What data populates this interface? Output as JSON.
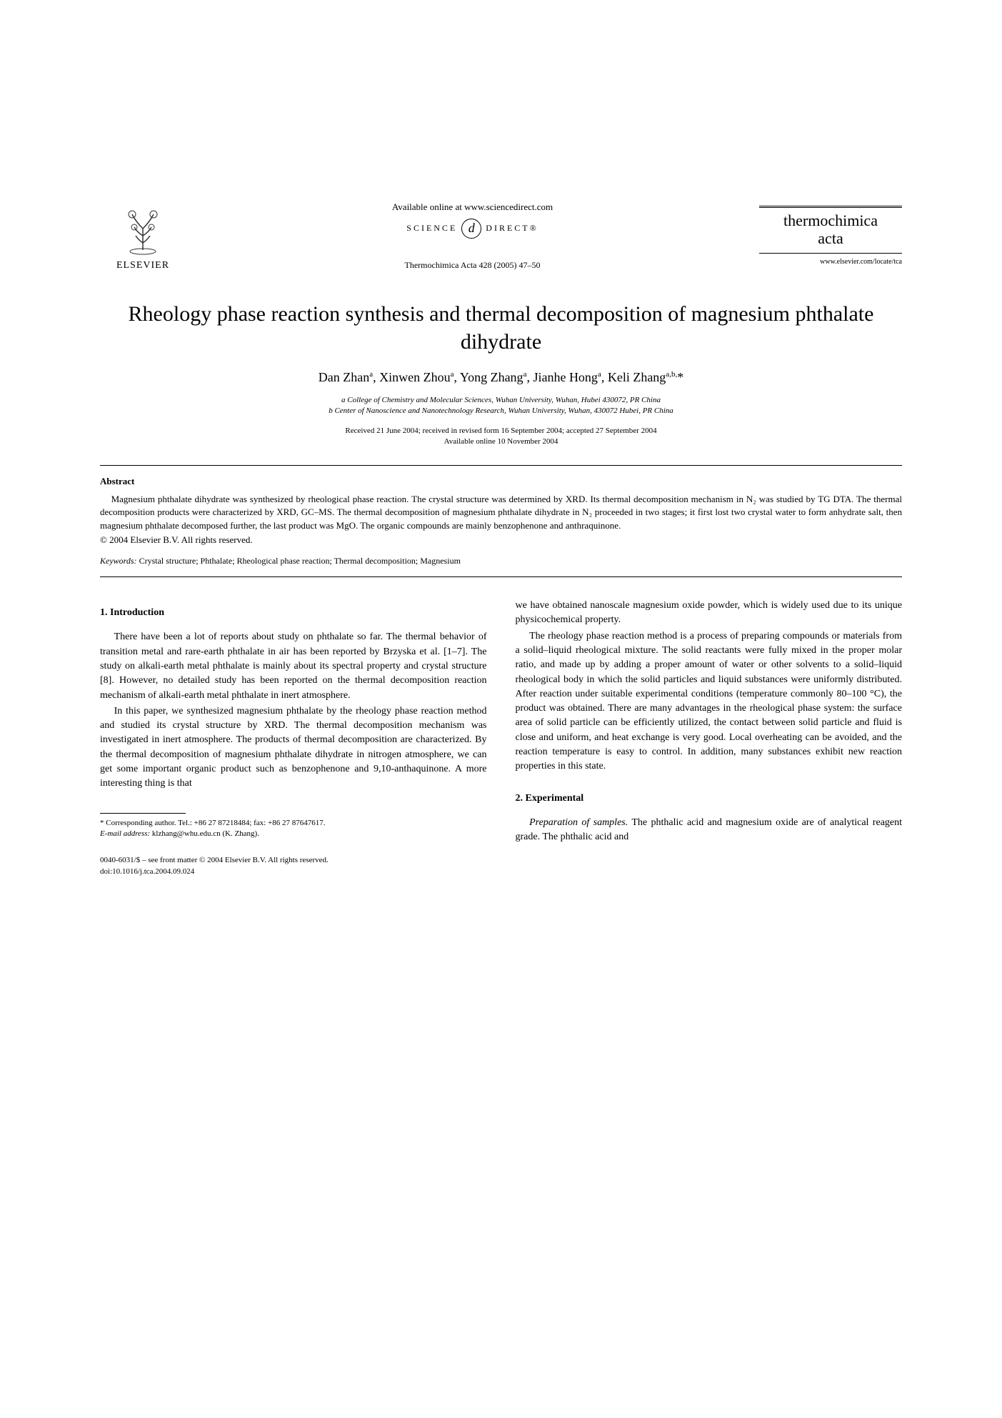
{
  "header": {
    "publisher": "ELSEVIER",
    "available_online": "Available online at www.sciencedirect.com",
    "sciencedirect_left": "SCIENCE",
    "sciencedirect_mid": "d",
    "sciencedirect_right": "DIRECT®",
    "citation": "Thermochimica Acta 428 (2005) 47–50",
    "journal_title_line1": "thermochimica",
    "journal_title_line2": "acta",
    "journal_url": "www.elsevier.com/locate/tca"
  },
  "article": {
    "title": "Rheology phase reaction synthesis and thermal decomposition of magnesium phthalate dihydrate",
    "authors_html": "Dan Zhan<sup>a</sup>, Xinwen Zhou<sup>a</sup>, Yong Zhang<sup>a</sup>, Jianhe Hong<sup>a</sup>, Keli Zhang<sup>a,b,</sup>*",
    "affiliations": [
      "a College of Chemistry and Molecular Sciences, Wuhan University, Wuhan, Hubei 430072, PR China",
      "b Center of Nanoscience and Nanotechnology Research, Wuhan University, Wuhan, 430072 Hubei, PR China"
    ],
    "dates_line1": "Received 21 June 2004; received in revised form 16 September 2004; accepted 27 September 2004",
    "dates_line2": "Available online 10 November 2004"
  },
  "abstract": {
    "heading": "Abstract",
    "body": "Magnesium phthalate dihydrate was synthesized by rheological phase reaction. The crystal structure was determined by XRD. Its thermal decomposition mechanism in N₂ was studied by TG DTA. The thermal decomposition products were characterized by XRD, GC–MS. The thermal decomposition of magnesium phthalate dihydrate in N₂ proceeded in two stages; it first lost two crystal water to form anhydrate salt, then magnesium phthalate decomposed further, the last product was MgO. The organic compounds are mainly benzophenone and anthraquinone.",
    "copyright": "© 2004 Elsevier B.V. All rights reserved.",
    "keywords_label": "Keywords:",
    "keywords": "Crystal structure; Phthalate; Rheological phase reaction; Thermal decomposition; Magnesium"
  },
  "sections": {
    "intro_heading": "1.  Introduction",
    "intro_p1": "There have been a lot of reports about study on phthalate so far. The thermal behavior of transition metal and rare-earth phthalate in air has been reported by Brzyska et al. [1–7]. The study on alkali-earth metal phthalate is mainly about its spectral property and crystal structure [8]. However, no detailed study has been reported on the thermal decomposition reaction mechanism of alkali-earth metal phthalate in inert atmosphere.",
    "intro_p2": "In this paper, we synthesized magnesium phthalate by the rheology phase reaction method and studied its crystal structure by XRD. The thermal decomposition mechanism was investigated in inert atmosphere. The products of thermal decomposition are characterized. By the thermal decomposition of magnesium phthalate dihydrate in nitrogen atmosphere, we can get some important organic product such as benzophenone and 9,10-anthaquinone. A more interesting thing is that",
    "col2_p1": "we have obtained nanoscale magnesium oxide powder, which is widely used due to its unique physicochemical property.",
    "col2_p2": "The rheology phase reaction method is a process of preparing compounds or materials from a solid–liquid rheological mixture. The solid reactants were fully mixed in the proper molar ratio, and made up by adding a proper amount of water or other solvents to a solid–liquid rheological body in which the solid particles and liquid substances were uniformly distributed. After reaction under suitable experimental conditions (temperature commonly 80–100 °C), the product was obtained. There are many advantages in the rheological phase system: the surface area of solid particle can be efficiently utilized, the contact between solid particle and fluid is close and uniform, and heat exchange is very good. Local overheating can be avoided, and the reaction temperature is easy to control. In addition, many substances exhibit new reaction properties in this state.",
    "exp_heading": "2.  Experimental",
    "exp_p1": "Preparation of samples. The phthalic acid and magnesium oxide are of analytical reagent grade. The phthalic acid and"
  },
  "footnotes": {
    "corresponding": "* Corresponding author. Tel.: +86 27 87218484; fax: +86 27 87647617.",
    "email_label": "E-mail address:",
    "email": "klzhang@whu.edu.cn (K. Zhang)."
  },
  "bottom": {
    "line1": "0040-6031/$ – see front matter © 2004 Elsevier B.V. All rights reserved.",
    "line2": "doi:10.1016/j.tca.2004.09.024"
  },
  "colors": {
    "text": "#000000",
    "background": "#ffffff",
    "rule": "#000000"
  },
  "typography": {
    "title_size_pt": 22,
    "body_size_pt": 10,
    "abstract_size_pt": 9,
    "footnote_size_pt": 8,
    "font_family": "Times New Roman"
  }
}
